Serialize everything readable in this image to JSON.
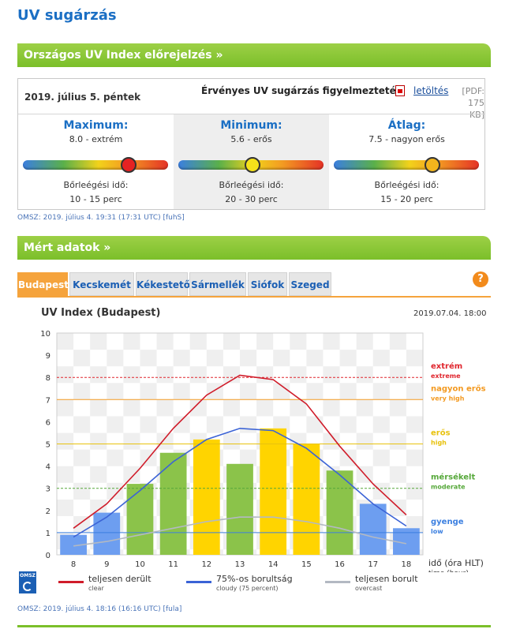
{
  "page": {
    "title": "UV sugárzás"
  },
  "forecast": {
    "section_title": "Országos UV Index előrejelzés »",
    "date": "2019. július 5. péntek",
    "warning_label": "Érvényes UV sugárzás figyelmeztetés:",
    "download_label": "letöltés",
    "pdf_info_line1": "[PDF:",
    "pdf_info_line2": "175 KB]",
    "columns": [
      {
        "head": "Maximum:",
        "value": "8.0 - extrém",
        "uv": 8.0,
        "knob_color": "#e52222",
        "burn_label": "Bőrleégési idő:",
        "burn_value": "10 - 15 perc"
      },
      {
        "head": "Minimum:",
        "value": "5.6 - erős",
        "uv": 5.6,
        "knob_color": "#f5e21a",
        "burn_label": "Bőrleégési idő:",
        "burn_value": "20 - 30 perc"
      },
      {
        "head": "Átlag:",
        "value": "7.5 - nagyon erős",
        "uv": 7.5,
        "knob_color": "#f2b51d",
        "burn_label": "Bőrleégési idő:",
        "burn_value": "15 - 20 perc"
      }
    ],
    "credit": "OMSZ: 2019. július 4. 19:31 (17:31 UTC) [fuhS]"
  },
  "measured": {
    "section_title": "Mért adatok »",
    "tabs": [
      "Budapest",
      "Kecskemét",
      "Kékestető",
      "Sármellék",
      "Siófok",
      "Szeged"
    ],
    "active_tab": 0,
    "help_label": "?",
    "credit": "OMSZ: 2019. július 4. 18:16 (16:16 UTC) [fula]"
  },
  "chart_data": {
    "type": "bar",
    "title": "UV Index (Budapest)",
    "timestamp": "2019.07.04. 18:00",
    "xlabel": "idő (óra HLT)",
    "xlabel_sub": "time (hour)",
    "categories": [
      "8",
      "9",
      "10",
      "11",
      "12",
      "13",
      "14",
      "15",
      "16",
      "17",
      "18"
    ],
    "values": [
      0.9,
      1.9,
      3.2,
      4.6,
      5.2,
      4.1,
      5.7,
      5.0,
      3.8,
      2.3,
      1.2
    ],
    "bar_colors": [
      "#6d9ef0",
      "#6d9ef0",
      "#8bc34a",
      "#8bc34a",
      "#ffd400",
      "#8bc34a",
      "#ffd400",
      "#ffd400",
      "#8bc34a",
      "#6d9ef0",
      "#6d9ef0"
    ],
    "ylim": [
      0,
      10
    ],
    "yticks": [
      "0",
      "1",
      "2",
      "3",
      "4",
      "5",
      "6",
      "7",
      "8",
      "9",
      "10"
    ],
    "series": [
      {
        "name": "teljesen derült",
        "name_en": "clear",
        "color": "#d01c2a",
        "values": [
          1.2,
          2.3,
          3.9,
          5.7,
          7.2,
          8.1,
          7.9,
          6.8,
          4.9,
          3.2,
          1.8
        ]
      },
      {
        "name": "75%-os borultság",
        "name_en": "cloudy (75 percent)",
        "color": "#3b63d6",
        "values": [
          0.8,
          1.7,
          2.9,
          4.2,
          5.2,
          5.7,
          5.6,
          4.8,
          3.6,
          2.3,
          1.3
        ]
      },
      {
        "name": "teljesen borult",
        "name_en": "overcast",
        "color": "#b3b9c2",
        "values": [
          0.4,
          0.6,
          0.9,
          1.2,
          1.5,
          1.7,
          1.7,
          1.5,
          1.2,
          0.8,
          0.5
        ]
      }
    ],
    "thresholds": [
      {
        "y": 8,
        "label": "extrém",
        "label_en": "extreme",
        "color": "#e0262e",
        "dashed": true
      },
      {
        "y": 7,
        "label": "nagyon erős",
        "label_en": "very high",
        "color": "#f39a22",
        "dashed": false
      },
      {
        "y": 5,
        "label": "erős",
        "label_en": "high",
        "color": "#e8c20e",
        "dashed": false
      },
      {
        "y": 3,
        "label": "mérsékelt",
        "label_en": "moderate",
        "color": "#56a83a",
        "dashed": true
      },
      {
        "y": 1,
        "label": "gyenge",
        "label_en": "low",
        "color": "#3b7fe0",
        "dashed": false
      }
    ]
  }
}
